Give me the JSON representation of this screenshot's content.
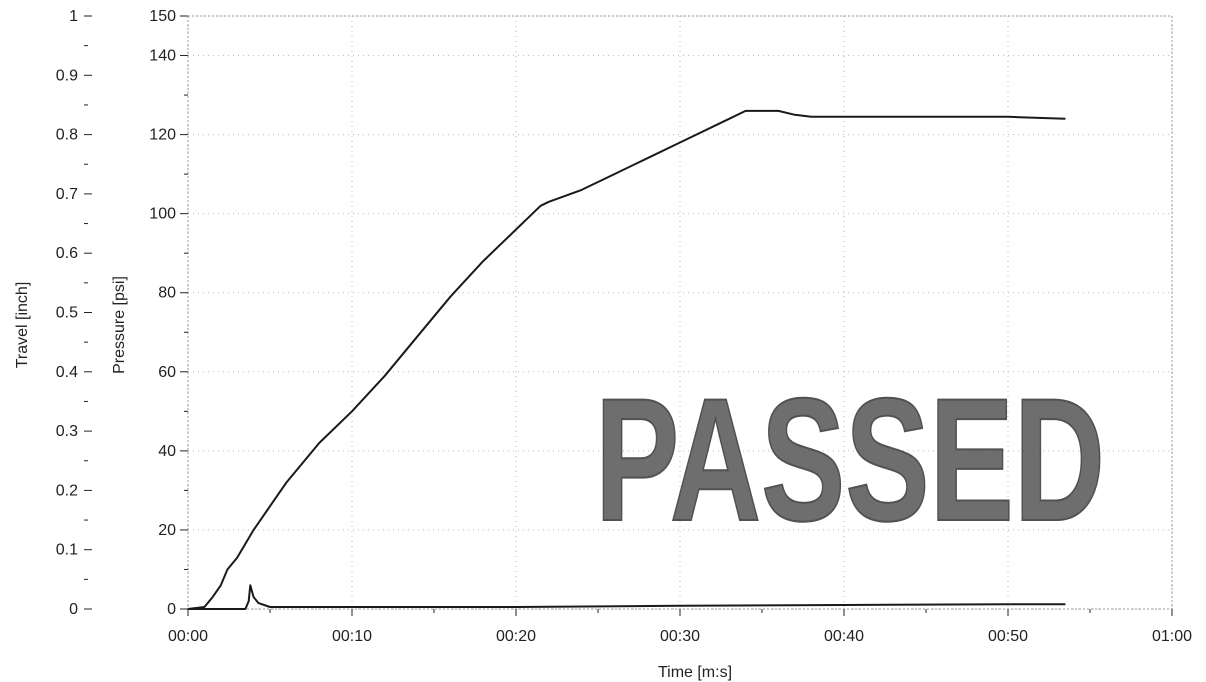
{
  "chart_data": {
    "type": "line",
    "title": "",
    "xlabel": "Time [m:s]",
    "ylabel_pressure": "Pressure [psi]",
    "ylabel_travel": "Travel [inch]",
    "x_unit": "seconds",
    "xlim": [
      0,
      60
    ],
    "ylim_pressure": [
      0,
      150
    ],
    "ylim_travel": [
      0,
      1
    ],
    "x_ticks": [
      "00:00",
      "00:10",
      "00:20",
      "00:30",
      "00:40",
      "00:50",
      "01:00"
    ],
    "x_tick_values": [
      0,
      10,
      20,
      30,
      40,
      50,
      60
    ],
    "pressure_ticks": [
      0,
      20,
      40,
      60,
      80,
      100,
      120,
      140,
      150
    ],
    "travel_ticks": [
      0,
      0.1,
      0.2,
      0.3,
      0.4,
      0.5,
      0.6,
      0.7,
      0.8,
      0.9,
      1
    ],
    "grid": true,
    "line_color": "#1a1a1a",
    "series": [
      {
        "axis": "pressure",
        "x": [
          0,
          1,
          1.5,
          2,
          2.4,
          3,
          4,
          5,
          6,
          8,
          10,
          12,
          14,
          16,
          18,
          20,
          21,
          21.5,
          22,
          24,
          26,
          28,
          30,
          32,
          33,
          34,
          35,
          36,
          37,
          38,
          40,
          45,
          50,
          53.5
        ],
        "values": [
          0,
          0.5,
          3,
          6,
          10,
          13,
          20,
          26,
          32,
          42,
          50,
          59,
          69,
          79,
          88,
          96,
          100,
          102,
          103,
          106,
          110,
          114,
          118,
          122,
          124,
          126,
          126,
          126,
          125,
          124.5,
          124.5,
          124.5,
          124.5,
          124
        ]
      },
      {
        "axis": "pressure",
        "x": [
          0,
          3.5,
          3.7,
          3.8,
          4.0,
          4.3,
          5,
          10,
          20,
          30,
          40,
          50,
          53.5
        ],
        "values": [
          0,
          0,
          2,
          6,
          3,
          1.5,
          0.5,
          0.5,
          0.5,
          0.8,
          1,
          1.2,
          1.2
        ]
      }
    ]
  },
  "stamp": {
    "text": "PASSED",
    "color": "#555555"
  }
}
